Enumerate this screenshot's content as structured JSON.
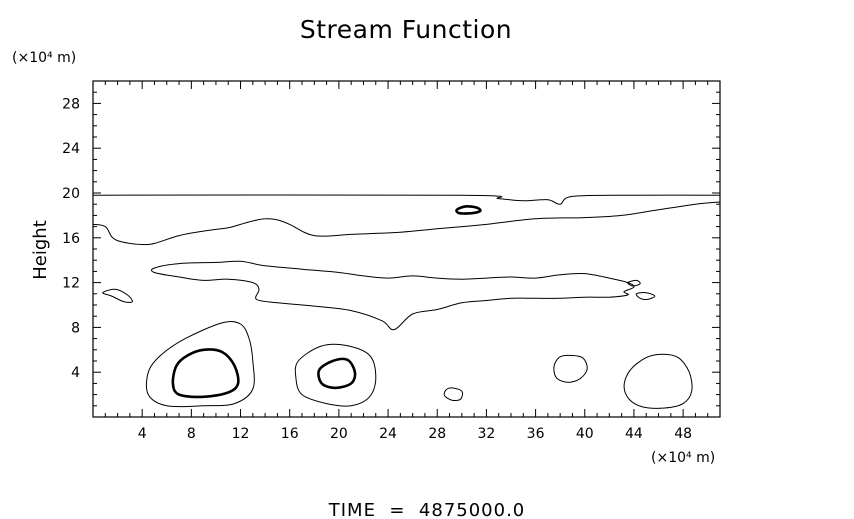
{
  "chart_data": {
    "type": "contour",
    "title": "Stream Function",
    "xlabel": "",
    "ylabel": "Height",
    "x_unit": "(×10⁴ m)",
    "y_unit": "(×10⁴ m)",
    "xlim": [
      0,
      51
    ],
    "ylim": [
      0,
      30
    ],
    "x_ticks": [
      4,
      8,
      12,
      16,
      20,
      24,
      28,
      32,
      36,
      40,
      44,
      48
    ],
    "y_ticks": [
      4,
      8,
      12,
      16,
      20,
      24,
      28
    ],
    "footer": "TIME  =  4875000.0",
    "contours": [
      {
        "id": "top-level",
        "weight": "thin",
        "closed": false,
        "points": [
          [
            0,
            19.8
          ],
          [
            30,
            19.8
          ],
          [
            33,
            19.5
          ],
          [
            35,
            19.3
          ],
          [
            37,
            19.4
          ],
          [
            38,
            19.0
          ],
          [
            39,
            19.7
          ],
          [
            44,
            19.8
          ],
          [
            51,
            19.8
          ]
        ]
      },
      {
        "id": "upper-band",
        "weight": "thin",
        "closed": false,
        "points": [
          [
            0,
            17.2
          ],
          [
            1,
            17.0
          ],
          [
            1.6,
            16.0
          ],
          [
            2.5,
            15.6
          ],
          [
            4,
            15.4
          ],
          [
            5,
            15.5
          ],
          [
            7,
            16.2
          ],
          [
            9,
            16.6
          ],
          [
            11,
            16.9
          ],
          [
            12,
            17.2
          ],
          [
            13,
            17.5
          ],
          [
            14,
            17.7
          ],
          [
            15,
            17.6
          ],
          [
            16,
            17.2
          ],
          [
            18,
            16.2
          ],
          [
            21,
            16.3
          ],
          [
            25,
            16.5
          ],
          [
            28,
            16.8
          ],
          [
            32,
            17.2
          ],
          [
            36,
            17.7
          ],
          [
            40,
            17.8
          ],
          [
            43,
            18.0
          ],
          [
            46,
            18.5
          ],
          [
            49,
            19.0
          ],
          [
            51,
            19.2
          ]
        ]
      },
      {
        "id": "small-loop-top",
        "weight": "thick",
        "closed": true,
        "points": [
          [
            29.6,
            18.5
          ],
          [
            30.3,
            18.8
          ],
          [
            31.2,
            18.7
          ],
          [
            31.5,
            18.4
          ],
          [
            30.8,
            18.2
          ],
          [
            29.8,
            18.2
          ]
        ]
      },
      {
        "id": "middle-band",
        "weight": "thin",
        "closed": true,
        "points": [
          [
            5,
            13.3
          ],
          [
            7,
            13.7
          ],
          [
            10,
            13.8
          ],
          [
            12,
            13.9
          ],
          [
            14,
            13.5
          ],
          [
            17,
            13.2
          ],
          [
            20,
            12.9
          ],
          [
            22,
            12.6
          ],
          [
            24,
            12.4
          ],
          [
            26,
            12.6
          ],
          [
            28,
            12.4
          ],
          [
            30,
            12.3
          ],
          [
            32,
            12.4
          ],
          [
            34,
            12.5
          ],
          [
            36,
            12.4
          ],
          [
            38,
            12.7
          ],
          [
            40,
            12.8
          ],
          [
            42,
            12.4
          ],
          [
            43.5,
            12.0
          ],
          [
            44,
            11.6
          ],
          [
            43.2,
            11.2
          ],
          [
            43.5,
            10.9
          ],
          [
            42,
            10.7
          ],
          [
            40,
            10.7
          ],
          [
            38,
            10.6
          ],
          [
            36,
            10.6
          ],
          [
            34,
            10.6
          ],
          [
            32,
            10.4
          ],
          [
            30,
            10.2
          ],
          [
            28,
            9.6
          ],
          [
            26,
            9.2
          ],
          [
            24.5,
            7.8
          ],
          [
            23.5,
            8.6
          ],
          [
            21,
            9.5
          ],
          [
            18,
            9.9
          ],
          [
            15,
            10.2
          ],
          [
            13.3,
            10.5
          ],
          [
            13.5,
            11.4
          ],
          [
            13,
            12.0
          ],
          [
            11,
            12.3
          ],
          [
            9,
            12.2
          ],
          [
            7,
            12.5
          ],
          [
            5,
            12.9
          ]
        ]
      },
      {
        "id": "small-loop-left",
        "weight": "thin",
        "closed": true,
        "points": [
          [
            0.8,
            11.1
          ],
          [
            1.8,
            11.4
          ],
          [
            2.8,
            10.9
          ],
          [
            3.2,
            10.3
          ],
          [
            2.5,
            10.3
          ],
          [
            1.5,
            10.8
          ]
        ]
      },
      {
        "id": "small-loop-right-a",
        "weight": "thin",
        "closed": true,
        "points": [
          [
            44.2,
            11.0
          ],
          [
            45.0,
            11.1
          ],
          [
            45.7,
            10.8
          ],
          [
            45.1,
            10.5
          ],
          [
            44.5,
            10.6
          ]
        ]
      },
      {
        "id": "small-loop-right-b",
        "weight": "thin",
        "closed": true,
        "points": [
          [
            43.5,
            12.0
          ],
          [
            44.2,
            12.2
          ],
          [
            44.5,
            11.9
          ],
          [
            43.9,
            11.7
          ]
        ]
      },
      {
        "id": "cell-8-outer",
        "weight": "thin",
        "closed": true,
        "points": [
          [
            10.5,
            8.4
          ],
          [
            12,
            8.3
          ],
          [
            12.7,
            7.0
          ],
          [
            13,
            5.0
          ],
          [
            13,
            2.5
          ],
          [
            11.5,
            1.2
          ],
          [
            9,
            1.0
          ],
          [
            6,
            1.0
          ],
          [
            4.5,
            2.0
          ],
          [
            4.5,
            4.0
          ],
          [
            5.5,
            5.5
          ],
          [
            7.5,
            7.0
          ]
        ]
      },
      {
        "id": "cell-8-inner",
        "weight": "thick",
        "closed": true,
        "points": [
          [
            9,
            6.0
          ],
          [
            10.5,
            5.8
          ],
          [
            11.5,
            4.6
          ],
          [
            11.8,
            3.0
          ],
          [
            11,
            2.2
          ],
          [
            9,
            1.8
          ],
          [
            7,
            2.0
          ],
          [
            6.5,
            3.0
          ],
          [
            6.8,
            4.6
          ],
          [
            7.7,
            5.5
          ]
        ]
      },
      {
        "id": "cell-20-outer",
        "weight": "thin",
        "closed": true,
        "points": [
          [
            18.5,
            6.3
          ],
          [
            20.5,
            6.4
          ],
          [
            22.5,
            5.5
          ],
          [
            23,
            3.5
          ],
          [
            22.5,
            1.8
          ],
          [
            21,
            1.0
          ],
          [
            19,
            1.2
          ],
          [
            17,
            2.0
          ],
          [
            16.5,
            3.5
          ],
          [
            16.7,
            5.0
          ]
        ]
      },
      {
        "id": "cell-20-inner",
        "weight": "thick",
        "closed": true,
        "points": [
          [
            19.5,
            5.0
          ],
          [
            20.7,
            5.1
          ],
          [
            21.3,
            4.0
          ],
          [
            21,
            3.0
          ],
          [
            19.7,
            2.6
          ],
          [
            18.6,
            3.0
          ],
          [
            18.4,
            4.2
          ]
        ]
      },
      {
        "id": "cell-29",
        "weight": "thin",
        "closed": true,
        "points": [
          [
            29.2,
            2.6
          ],
          [
            30.0,
            2.3
          ],
          [
            29.9,
            1.6
          ],
          [
            29.2,
            1.5
          ],
          [
            28.6,
            1.9
          ],
          [
            28.7,
            2.4
          ]
        ]
      },
      {
        "id": "cell-38",
        "weight": "thin",
        "closed": true,
        "points": [
          [
            38.6,
            5.5
          ],
          [
            39.8,
            5.3
          ],
          [
            40.2,
            4.3
          ],
          [
            39.6,
            3.4
          ],
          [
            38.6,
            3.1
          ],
          [
            37.7,
            3.5
          ],
          [
            37.5,
            4.5
          ],
          [
            37.9,
            5.3
          ]
        ]
      },
      {
        "id": "cell-46",
        "weight": "thin",
        "closed": true,
        "points": [
          [
            46.3,
            5.6
          ],
          [
            47.6,
            5.3
          ],
          [
            48.5,
            4.0
          ],
          [
            48.7,
            2.3
          ],
          [
            48.0,
            1.2
          ],
          [
            46.5,
            0.8
          ],
          [
            44.7,
            0.9
          ],
          [
            43.6,
            1.6
          ],
          [
            43.2,
            2.8
          ],
          [
            43.7,
            4.2
          ],
          [
            45.0,
            5.3
          ]
        ]
      }
    ]
  }
}
